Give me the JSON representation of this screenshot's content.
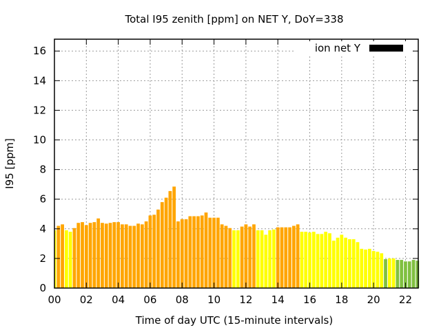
{
  "chart_data": {
    "type": "bar",
    "title": "Total I95 zenith [ppm] on NET Y, DoY=338",
    "xlabel": "Time of day UTC (15-minute intervals)",
    "ylabel": "I95 [ppm]",
    "xlim": [
      0,
      22.8
    ],
    "ylim": [
      0,
      16.8
    ],
    "xticks": [
      "00",
      "02",
      "04",
      "06",
      "08",
      "10",
      "12",
      "14",
      "16",
      "18",
      "20",
      "22"
    ],
    "yticks": [
      "0",
      "2",
      "4",
      "6",
      "8",
      "10",
      "12",
      "14",
      "16"
    ],
    "grid": true,
    "legend": {
      "label": "ion net Y",
      "placement": "top-right",
      "color": "#000000"
    },
    "interval_hours": 0.25,
    "colors": {
      "high": "#ffa500",
      "mid": "#ffff00",
      "low": "#80c040"
    },
    "values": [
      3.9,
      4.2,
      4.3,
      3.9,
      3.8,
      4.05,
      4.4,
      4.45,
      4.25,
      4.4,
      4.45,
      4.7,
      4.4,
      4.35,
      4.4,
      4.45,
      4.45,
      4.3,
      4.3,
      4.2,
      4.2,
      4.35,
      4.3,
      4.5,
      4.9,
      4.95,
      5.3,
      5.8,
      6.1,
      6.55,
      6.85,
      4.5,
      4.65,
      4.65,
      4.85,
      4.85,
      4.85,
      4.9,
      5.1,
      4.75,
      4.75,
      4.75,
      4.3,
      4.2,
      4.05,
      3.9,
      3.9,
      4.15,
      4.3,
      4.15,
      4.3,
      3.9,
      3.9,
      3.6,
      3.9,
      3.95,
      4.1,
      4.1,
      4.1,
      4.1,
      4.2,
      4.3,
      3.8,
      3.8,
      3.75,
      3.8,
      3.65,
      3.65,
      3.8,
      3.7,
      3.2,
      3.4,
      3.6,
      3.4,
      3.3,
      3.3,
      3.1,
      2.65,
      2.6,
      2.65,
      2.5,
      2.45,
      2.35,
      1.95,
      2.0,
      2.0,
      1.9,
      1.9,
      1.8,
      1.8,
      1.9,
      1.85
    ]
  }
}
